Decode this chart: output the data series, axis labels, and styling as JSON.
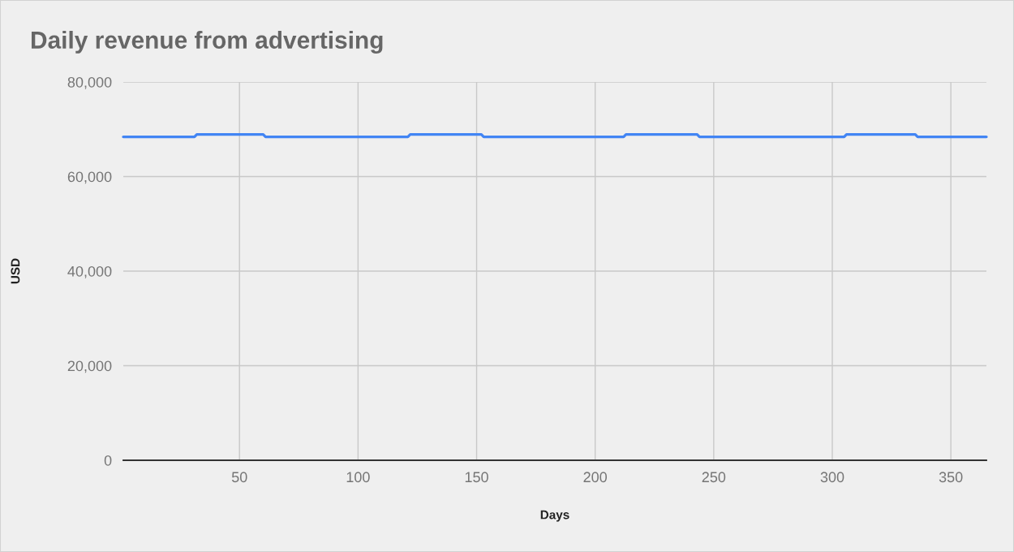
{
  "chart_data": {
    "type": "line",
    "title": "Daily revenue from advertising",
    "xlabel": "Days",
    "ylabel": "USD",
    "x": [
      1,
      31,
      32,
      60,
      61,
      121,
      122,
      152,
      153,
      212,
      213,
      243,
      244,
      305,
      306,
      335,
      336,
      365
    ],
    "series": [
      {
        "color": "#4285f4",
        "values": [
          68400,
          68400,
          68900,
          68900,
          68400,
          68400,
          68900,
          68900,
          68400,
          68400,
          68900,
          68900,
          68400,
          68400,
          68900,
          68900,
          68400,
          68400
        ]
      }
    ],
    "xlim": [
      1,
      365
    ],
    "xticks": [
      50,
      100,
      150,
      200,
      250,
      300,
      350
    ],
    "ylim": [
      0,
      80000
    ],
    "yticks": [
      0,
      {
        "value": 20000,
        "label": "20,000"
      },
      {
        "value": 40000,
        "label": "40,000"
      },
      {
        "value": 60000,
        "label": "60,000"
      },
      {
        "value": 80000,
        "label": "80,000"
      }
    ],
    "grid": true,
    "marker": "none",
    "line_style": "solid"
  }
}
